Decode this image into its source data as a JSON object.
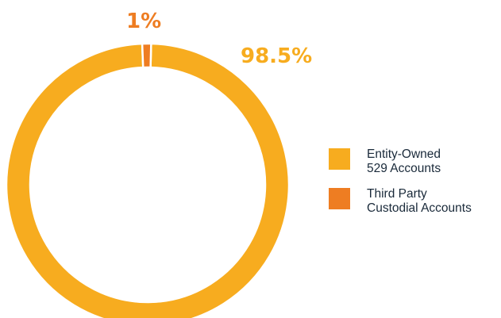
{
  "chart_data": {
    "type": "pie",
    "style": "donut",
    "categories": [
      "Entity-Owned 529 Accounts",
      "Third Party Custodial Accounts"
    ],
    "values": [
      98.5,
      1
    ],
    "data_labels": [
      "98.5%",
      "1%"
    ],
    "colors": [
      "#F7AC1F",
      "#EE7D22"
    ],
    "legend_placement": "right",
    "legend": [
      {
        "lines": [
          "Entity-Owned",
          "529 Accounts"
        ],
        "color": "#F7AC1F"
      },
      {
        "lines": [
          "Third Party",
          "Custodial Accounts"
        ],
        "color": "#EE7D22"
      }
    ]
  }
}
